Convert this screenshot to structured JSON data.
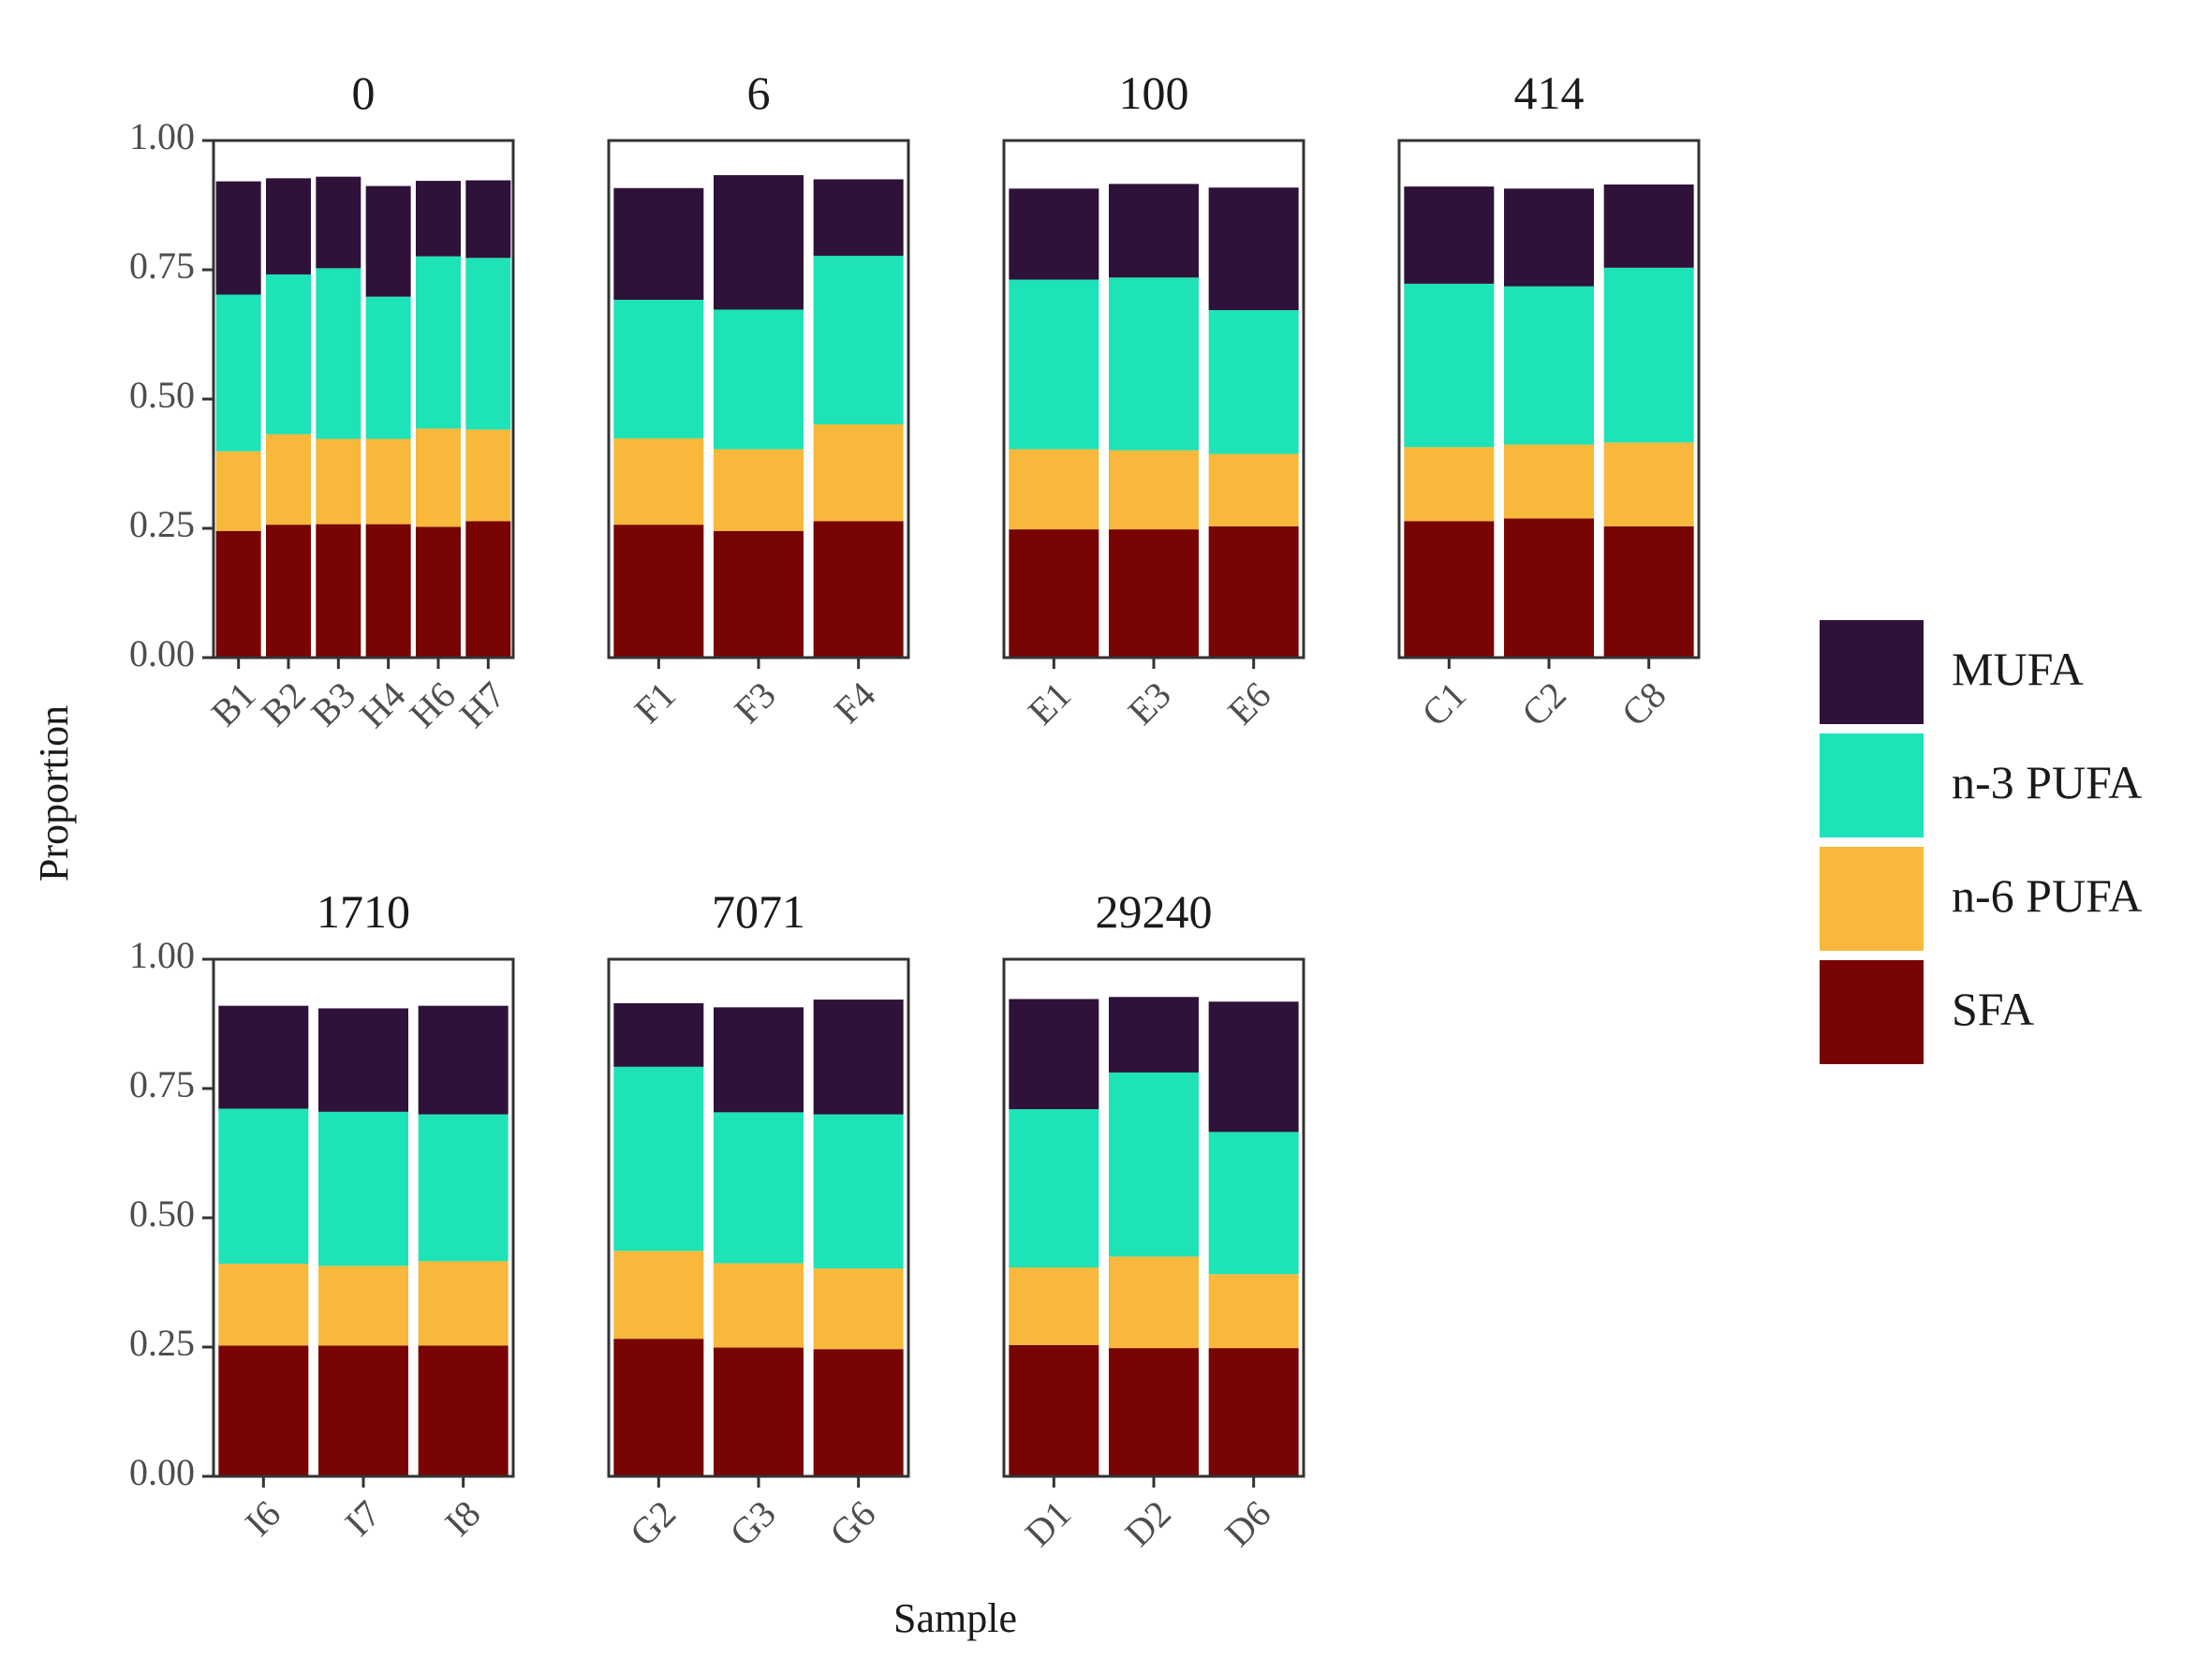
{
  "chart_data": {
    "type": "bar",
    "stacked": true,
    "xlabel": "Sample",
    "ylabel": "Proportion",
    "ylim": [
      0,
      1
    ],
    "yticks": [
      "0.00",
      "0.25",
      "0.50",
      "0.75",
      "1.00"
    ],
    "legend_position": "right",
    "series_order": [
      "SFA",
      "n-6 PUFA",
      "n-3 PUFA",
      "MUFA"
    ],
    "legend_order": [
      "MUFA",
      "n-3 PUFA",
      "n-6 PUFA",
      "SFA"
    ],
    "colors": {
      "MUFA": "#2e1239",
      "n-3 PUFA": "#1ee3b6",
      "n-6 PUFA": "#f8b83b",
      "SFA": "#780404"
    },
    "panels": [
      {
        "title": "0",
        "categories": [
          "B1",
          "B2",
          "B3",
          "H4",
          "H6",
          "H7"
        ],
        "series": [
          {
            "name": "SFA",
            "values": [
              0.245,
              0.257,
              0.258,
              0.258,
              0.253,
              0.264
            ]
          },
          {
            "name": "n-6 PUFA",
            "values": [
              0.154,
              0.175,
              0.165,
              0.165,
              0.19,
              0.177
            ]
          },
          {
            "name": "n-3 PUFA",
            "values": [
              0.303,
              0.309,
              0.33,
              0.275,
              0.333,
              0.332
            ]
          },
          {
            "name": "MUFA",
            "values": [
              0.219,
              0.186,
              0.177,
              0.214,
              0.146,
              0.15
            ]
          }
        ]
      },
      {
        "title": "6",
        "categories": [
          "F1",
          "F3",
          "F4"
        ],
        "series": [
          {
            "name": "SFA",
            "values": [
              0.257,
              0.245,
              0.264
            ]
          },
          {
            "name": "n-6 PUFA",
            "values": [
              0.167,
              0.158,
              0.187
            ]
          },
          {
            "name": "n-3 PUFA",
            "values": [
              0.268,
              0.27,
              0.326
            ]
          },
          {
            "name": "MUFA",
            "values": [
              0.216,
              0.26,
              0.148
            ]
          }
        ]
      },
      {
        "title": "100",
        "categories": [
          "E1",
          "E3",
          "E6"
        ],
        "series": [
          {
            "name": "SFA",
            "values": [
              0.248,
              0.248,
              0.254
            ]
          },
          {
            "name": "n-6 PUFA",
            "values": [
              0.155,
              0.153,
              0.14
            ]
          },
          {
            "name": "n-3 PUFA",
            "values": [
              0.328,
              0.334,
              0.278
            ]
          },
          {
            "name": "MUFA",
            "values": [
              0.176,
              0.181,
              0.237
            ]
          }
        ]
      },
      {
        "title": "414",
        "categories": [
          "C1",
          "C2",
          "C8"
        ],
        "series": [
          {
            "name": "SFA",
            "values": [
              0.264,
              0.269,
              0.254
            ]
          },
          {
            "name": "n-6 PUFA",
            "values": [
              0.143,
              0.143,
              0.162
            ]
          },
          {
            "name": "n-3 PUFA",
            "values": [
              0.316,
              0.306,
              0.338
            ]
          },
          {
            "name": "MUFA",
            "values": [
              0.188,
              0.189,
              0.161
            ]
          }
        ]
      },
      {
        "title": "1710",
        "categories": [
          "I6",
          "I7",
          "I8"
        ],
        "series": [
          {
            "name": "SFA",
            "values": [
              0.253,
              0.253,
              0.253
            ]
          },
          {
            "name": "n-6 PUFA",
            "values": [
              0.158,
              0.154,
              0.163
            ]
          },
          {
            "name": "n-3 PUFA",
            "values": [
              0.3,
              0.298,
              0.284
            ]
          },
          {
            "name": "MUFA",
            "values": [
              0.199,
              0.2,
              0.21
            ]
          }
        ]
      },
      {
        "title": "7071",
        "categories": [
          "G2",
          "G3",
          "G6"
        ],
        "series": [
          {
            "name": "SFA",
            "values": [
              0.266,
              0.249,
              0.246
            ]
          },
          {
            "name": "n-6 PUFA",
            "values": [
              0.17,
              0.163,
              0.156
            ]
          },
          {
            "name": "n-3 PUFA",
            "values": [
              0.356,
              0.292,
              0.298
            ]
          },
          {
            "name": "MUFA",
            "values": [
              0.123,
              0.203,
              0.222
            ]
          }
        ]
      },
      {
        "title": "29240",
        "categories": [
          "D1",
          "D2",
          "D6"
        ],
        "series": [
          {
            "name": "SFA",
            "values": [
              0.254,
              0.248,
              0.248
            ]
          },
          {
            "name": "n-6 PUFA",
            "values": [
              0.15,
              0.177,
              0.143
            ]
          },
          {
            "name": "n-3 PUFA",
            "values": [
              0.306,
              0.356,
              0.275
            ]
          },
          {
            "name": "MUFA",
            "values": [
              0.213,
              0.146,
              0.252
            ]
          }
        ]
      }
    ]
  }
}
